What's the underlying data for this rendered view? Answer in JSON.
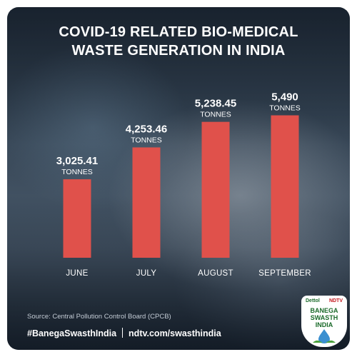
{
  "title": {
    "line1": "COVID-19 RELATED BIO-MEDICAL",
    "line2": "WASTE GENERATION IN INDIA"
  },
  "chart_data": {
    "type": "bar",
    "categories": [
      "JUNE",
      "JULY",
      "AUGUST",
      "SEPTEMBER"
    ],
    "values": [
      3025.41,
      4253.46,
      5238.45,
      5490
    ],
    "value_labels": [
      "3,025.41",
      "4,253.46",
      "5,238.45",
      "5,490"
    ],
    "unit": "TONNES",
    "ylim": [
      0,
      6000
    ],
    "grid": false,
    "bar_color": "#e0514b"
  },
  "source": "Source: Central Pollution Control Board (CPCB)",
  "footer": {
    "hashtag": "#BanegaSwasthIndia",
    "url": "ndtv.com/swasthindia"
  },
  "logo": {
    "brand_left": "Dettol",
    "brand_right": "NDTV",
    "line1": "BANEGA",
    "line2": "SWASTH",
    "line3": "INDIA"
  }
}
